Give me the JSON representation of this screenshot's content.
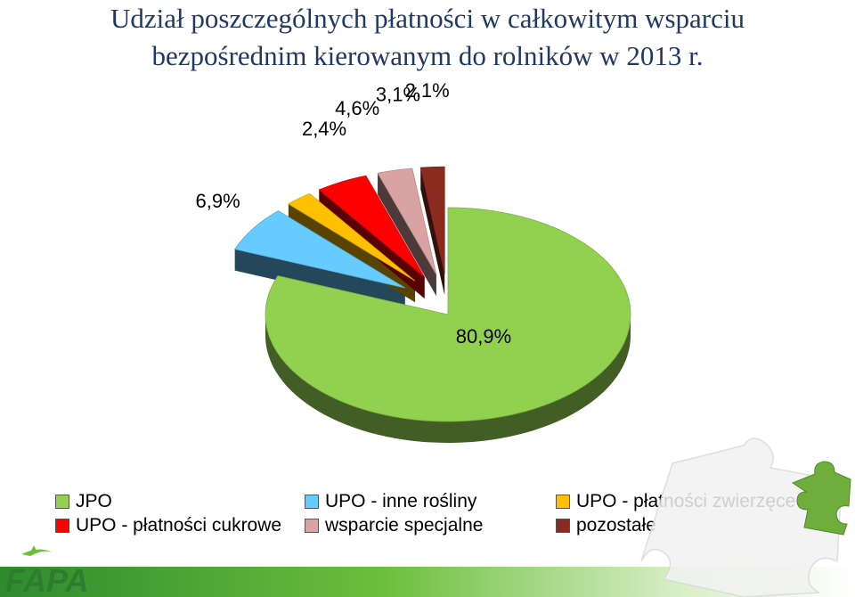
{
  "title_line1": "Udział poszczególnych płatności w całkowitym wsparciu",
  "title_line2": "bezpośrednim kierowanym do rolników w 2013 r.",
  "chart_data": {
    "type": "pie",
    "title": "Udział poszczególnych płatności w całkowitym wsparciu bezpośrednim kierowanym do rolników w 2013 r.",
    "exploded": true,
    "legend_position": "bottom",
    "slices": [
      {
        "name": "JPO",
        "value": 80.9,
        "label": "80,9%",
        "color": "#92d050"
      },
      {
        "name": "UPO - inne rośliny",
        "value": 6.9,
        "label": "6,9%",
        "color": "#66ccff"
      },
      {
        "name": "UPO - płatności zwierzęce",
        "value": 2.4,
        "label": "2,4%",
        "color": "#ffc000"
      },
      {
        "name": "UPO - płatności cukrowe",
        "value": 4.6,
        "label": "4,6%",
        "color": "#ff0000"
      },
      {
        "name": "wsparcie specjalne",
        "value": 3.1,
        "label": "3,1%",
        "color": "#d9a3a3"
      },
      {
        "name": "pozostałe",
        "value": 2.1,
        "label": "2,1%",
        "color": "#8b2a1e"
      }
    ]
  },
  "legend_order": [
    0,
    1,
    2,
    3,
    4,
    5
  ],
  "logo_text": "FAPA",
  "icons": {
    "logo": "fapa-logo-icon",
    "puzzle": "puzzle-icon"
  }
}
